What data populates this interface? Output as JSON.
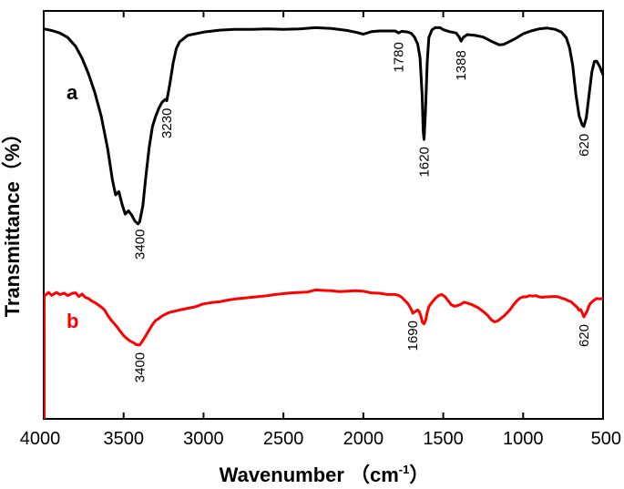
{
  "chart_data": {
    "type": "line",
    "xlabel": "Wavenumber",
    "xlabel_unit_open": "（cm",
    "xlabel_unit_sup": "-1",
    "xlabel_unit_close": "）",
    "ylabel": "Transmittance（%）",
    "xlim": [
      4000,
      500
    ],
    "ylim": [
      0,
      100
    ],
    "x_ticks": [
      4000,
      3500,
      3000,
      2500,
      2000,
      1500,
      1000,
      500
    ],
    "y_ticks_shown": false,
    "series": [
      {
        "name": "a",
        "color": "#000000",
        "points": [
          [
            4000,
            95.6
          ],
          [
            3950,
            95.2
          ],
          [
            3900,
            94.6
          ],
          [
            3850,
            93.5
          ],
          [
            3800,
            91.3
          ],
          [
            3760,
            88.4
          ],
          [
            3720,
            84.6
          ],
          [
            3680,
            80.0
          ],
          [
            3640,
            74.1
          ],
          [
            3600,
            66.2
          ],
          [
            3570,
            58.6
          ],
          [
            3550,
            54.9
          ],
          [
            3530,
            55.7
          ],
          [
            3510,
            52.6
          ],
          [
            3490,
            50.2
          ],
          [
            3470,
            51.0
          ],
          [
            3450,
            50.0
          ],
          [
            3430,
            48.5
          ],
          [
            3410,
            47.8
          ],
          [
            3400,
            48.3
          ],
          [
            3380,
            52.2
          ],
          [
            3360,
            59.8
          ],
          [
            3340,
            66.6
          ],
          [
            3320,
            71.6
          ],
          [
            3300,
            74.1
          ],
          [
            3280,
            76.1
          ],
          [
            3260,
            77.6
          ],
          [
            3240,
            78.3
          ],
          [
            3230,
            78.0
          ],
          [
            3210,
            82.3
          ],
          [
            3190,
            87.3
          ],
          [
            3170,
            90.8
          ],
          [
            3150,
            92.4
          ],
          [
            3100,
            94.0
          ],
          [
            3000,
            94.8
          ],
          [
            2900,
            95.3
          ],
          [
            2800,
            95.5
          ],
          [
            2700,
            95.5
          ],
          [
            2600,
            95.6
          ],
          [
            2500,
            95.5
          ],
          [
            2400,
            95.6
          ],
          [
            2300,
            95.9
          ],
          [
            2200,
            95.7
          ],
          [
            2100,
            95.2
          ],
          [
            2050,
            94.8
          ],
          [
            2000,
            94.3
          ],
          [
            1950,
            94.9
          ],
          [
            1900,
            95.1
          ],
          [
            1850,
            95.1
          ],
          [
            1800,
            95.1
          ],
          [
            1780,
            94.6
          ],
          [
            1760,
            95.0
          ],
          [
            1720,
            94.8
          ],
          [
            1700,
            94.5
          ],
          [
            1680,
            93.6
          ],
          [
            1660,
            91.9
          ],
          [
            1645,
            88.5
          ],
          [
            1632,
            79.4
          ],
          [
            1625,
            70.5
          ],
          [
            1620,
            68.5
          ],
          [
            1612,
            74.5
          ],
          [
            1600,
            87.5
          ],
          [
            1590,
            93.5
          ],
          [
            1570,
            95.4
          ],
          [
            1550,
            95.9
          ],
          [
            1520,
            95.9
          ],
          [
            1500,
            95.4
          ],
          [
            1460,
            94.9
          ],
          [
            1420,
            94.6
          ],
          [
            1400,
            93.6
          ],
          [
            1388,
            92.6
          ],
          [
            1375,
            93.5
          ],
          [
            1350,
            94.2
          ],
          [
            1300,
            94.0
          ],
          [
            1250,
            93.6
          ],
          [
            1200,
            92.6
          ],
          [
            1150,
            91.7
          ],
          [
            1120,
            91.8
          ],
          [
            1100,
            92.2
          ],
          [
            1050,
            93.2
          ],
          [
            1000,
            94.4
          ],
          [
            950,
            95.1
          ],
          [
            900,
            95.6
          ],
          [
            850,
            95.8
          ],
          [
            800,
            95.5
          ],
          [
            760,
            94.8
          ],
          [
            730,
            93.4
          ],
          [
            710,
            91.0
          ],
          [
            690,
            86.6
          ],
          [
            670,
            79.5
          ],
          [
            650,
            74.3
          ],
          [
            630,
            72.0
          ],
          [
            620,
            71.7
          ],
          [
            605,
            73.8
          ],
          [
            590,
            78.6
          ],
          [
            570,
            85.0
          ],
          [
            555,
            87.6
          ],
          [
            540,
            87.7
          ],
          [
            520,
            86.3
          ],
          [
            500,
            84.3
          ]
        ]
      },
      {
        "name": "b",
        "color": "#ff0000",
        "points": [
          [
            4000,
            30.0
          ],
          [
            3970,
            31.0
          ],
          [
            3950,
            30.3
          ],
          [
            3920,
            31.0
          ],
          [
            3900,
            30.5
          ],
          [
            3870,
            30.8
          ],
          [
            3850,
            30.2
          ],
          [
            3820,
            30.8
          ],
          [
            3800,
            30.9
          ],
          [
            3780,
            30.0
          ],
          [
            3760,
            30.6
          ],
          [
            3740,
            29.8
          ],
          [
            3720,
            29.5
          ],
          [
            3700,
            28.9
          ],
          [
            3680,
            28.5
          ],
          [
            3660,
            28.0
          ],
          [
            3640,
            27.4
          ],
          [
            3620,
            26.7
          ],
          [
            3600,
            25.4
          ],
          [
            3580,
            24.3
          ],
          [
            3560,
            23.4
          ],
          [
            3540,
            22.5
          ],
          [
            3520,
            21.4
          ],
          [
            3500,
            20.4
          ],
          [
            3480,
            19.7
          ],
          [
            3460,
            19.1
          ],
          [
            3440,
            18.7
          ],
          [
            3420,
            18.2
          ],
          [
            3400,
            18.1
          ],
          [
            3380,
            19.2
          ],
          [
            3360,
            20.5
          ],
          [
            3340,
            21.8
          ],
          [
            3320,
            23.1
          ],
          [
            3300,
            24.1
          ],
          [
            3280,
            24.6
          ],
          [
            3260,
            25.2
          ],
          [
            3240,
            25.6
          ],
          [
            3220,
            26.0
          ],
          [
            3200,
            26.2
          ],
          [
            3150,
            26.7
          ],
          [
            3100,
            27.1
          ],
          [
            3050,
            27.5
          ],
          [
            3000,
            28.2
          ],
          [
            2950,
            28.5
          ],
          [
            2900,
            28.7
          ],
          [
            2850,
            29.1
          ],
          [
            2800,
            29.4
          ],
          [
            2750,
            29.6
          ],
          [
            2700,
            29.8
          ],
          [
            2650,
            30.0
          ],
          [
            2600,
            30.2
          ],
          [
            2550,
            30.5
          ],
          [
            2500,
            30.7
          ],
          [
            2450,
            30.9
          ],
          [
            2400,
            31.0
          ],
          [
            2350,
            31.1
          ],
          [
            2300,
            31.6
          ],
          [
            2250,
            31.5
          ],
          [
            2200,
            31.4
          ],
          [
            2150,
            31.2
          ],
          [
            2100,
            31.3
          ],
          [
            2050,
            31.4
          ],
          [
            2000,
            31.3
          ],
          [
            1950,
            30.9
          ],
          [
            1900,
            30.8
          ],
          [
            1850,
            30.5
          ],
          [
            1800,
            30.5
          ],
          [
            1780,
            30.3
          ],
          [
            1760,
            29.8
          ],
          [
            1740,
            29.0
          ],
          [
            1720,
            28.2
          ],
          [
            1700,
            26.8
          ],
          [
            1690,
            25.9
          ],
          [
            1680,
            26.2
          ],
          [
            1670,
            26.4
          ],
          [
            1660,
            26.7
          ],
          [
            1650,
            26.3
          ],
          [
            1640,
            25.2
          ],
          [
            1630,
            23.7
          ],
          [
            1620,
            23.3
          ],
          [
            1610,
            24.2
          ],
          [
            1600,
            26.1
          ],
          [
            1590,
            27.5
          ],
          [
            1570,
            28.6
          ],
          [
            1550,
            29.5
          ],
          [
            1530,
            30.2
          ],
          [
            1510,
            30.5
          ],
          [
            1490,
            30.0
          ],
          [
            1470,
            29.0
          ],
          [
            1450,
            28.0
          ],
          [
            1430,
            27.6
          ],
          [
            1410,
            27.8
          ],
          [
            1390,
            28.1
          ],
          [
            1370,
            28.6
          ],
          [
            1350,
            28.4
          ],
          [
            1320,
            28.0
          ],
          [
            1300,
            27.6
          ],
          [
            1280,
            27.2
          ],
          [
            1260,
            26.6
          ],
          [
            1240,
            26.0
          ],
          [
            1220,
            25.3
          ],
          [
            1200,
            24.3
          ],
          [
            1180,
            23.8
          ],
          [
            1160,
            24.0
          ],
          [
            1140,
            24.6
          ],
          [
            1120,
            25.2
          ],
          [
            1100,
            26.0
          ],
          [
            1080,
            26.9
          ],
          [
            1060,
            28.0
          ],
          [
            1040,
            28.9
          ],
          [
            1020,
            29.6
          ],
          [
            1000,
            29.9
          ],
          [
            980,
            29.9
          ],
          [
            960,
            30.2
          ],
          [
            940,
            30.1
          ],
          [
            920,
            30.2
          ],
          [
            900,
            29.9
          ],
          [
            880,
            29.8
          ],
          [
            860,
            29.9
          ],
          [
            840,
            29.9
          ],
          [
            820,
            30.0
          ],
          [
            800,
            30.0
          ],
          [
            780,
            29.9
          ],
          [
            760,
            29.6
          ],
          [
            740,
            29.4
          ],
          [
            720,
            29.0
          ],
          [
            700,
            28.7
          ],
          [
            680,
            28.0
          ],
          [
            660,
            27.3
          ],
          [
            650,
            26.6
          ],
          [
            640,
            26.8
          ],
          [
            630,
            26.0
          ],
          [
            620,
            25.0
          ],
          [
            610,
            25.7
          ],
          [
            600,
            26.4
          ],
          [
            590,
            27.5
          ],
          [
            580,
            28.3
          ],
          [
            560,
            29.0
          ],
          [
            540,
            29.5
          ],
          [
            520,
            29.4
          ],
          [
            500,
            29.5
          ]
        ]
      }
    ],
    "vertical_edge_line": {
      "color": "#ff0000",
      "x": 4000,
      "y_from": 0,
      "y_to": 30.0
    },
    "annotations": [
      {
        "series": "a",
        "x": 3400,
        "label": "3400"
      },
      {
        "series": "a",
        "x": 3230,
        "label": "3230"
      },
      {
        "series": "a",
        "x": 1780,
        "label": "1780"
      },
      {
        "series": "a",
        "x": 1620,
        "label": "1620"
      },
      {
        "series": "a",
        "x": 1388,
        "label": "1388"
      },
      {
        "series": "a",
        "x": 620,
        "label": "620"
      },
      {
        "series": "b",
        "x": 3400,
        "label": "3400"
      },
      {
        "series": "b",
        "x": 1690,
        "label": "1690"
      },
      {
        "series": "b",
        "x": 620,
        "label": "620"
      }
    ],
    "series_labels": [
      {
        "series": "a",
        "text": "a",
        "color": "#000000"
      },
      {
        "series": "b",
        "text": "b",
        "color": "#ff0000"
      }
    ]
  }
}
